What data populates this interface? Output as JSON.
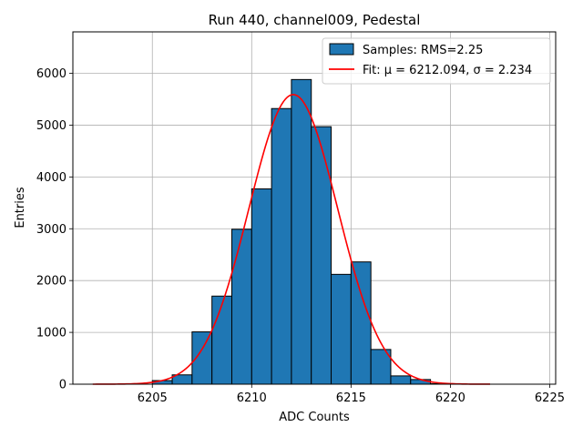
{
  "chart_data": {
    "type": "bar",
    "title": "Run 440, channel009, Pedestal",
    "xlabel": "ADC Counts",
    "ylabel": "Entries",
    "xlim": [
      6201,
      6225.3
    ],
    "ylim": [
      0,
      6800
    ],
    "xticks": [
      6205,
      6210,
      6215,
      6220,
      6225
    ],
    "yticks": [
      0,
      1000,
      2000,
      3000,
      4000,
      5000,
      6000
    ],
    "grid": true,
    "legend_position": "top-right",
    "bar_color": "#1f77b4",
    "bar_edge_color": "#000000",
    "fit_color": "#ff0000",
    "bin_width": 1,
    "bins": [
      {
        "x": 6205,
        "value": 70
      },
      {
        "x": 6206,
        "value": 180
      },
      {
        "x": 6207,
        "value": 1010
      },
      {
        "x": 6208,
        "value": 1700
      },
      {
        "x": 6209,
        "value": 2990
      },
      {
        "x": 6210,
        "value": 3770
      },
      {
        "x": 6211,
        "value": 5320
      },
      {
        "x": 6212,
        "value": 5880
      },
      {
        "x": 6213,
        "value": 4970
      },
      {
        "x": 6214,
        "value": 2120
      },
      {
        "x": 6215,
        "value": 2360
      },
      {
        "x": 6216,
        "value": 670
      },
      {
        "x": 6217,
        "value": 160
      },
      {
        "x": 6218,
        "value": 90
      },
      {
        "x": 6219,
        "value": 10
      }
    ],
    "fit": {
      "mu": 6212.094,
      "sigma": 2.234,
      "amplitude": 5590,
      "x_range": [
        6202,
        6222
      ]
    },
    "series": [
      {
        "name": "Samples: RMS=2.25",
        "kind": "histogram"
      },
      {
        "name": "Fit: μ = 6212.094, σ = 2.234",
        "kind": "line"
      }
    ]
  }
}
